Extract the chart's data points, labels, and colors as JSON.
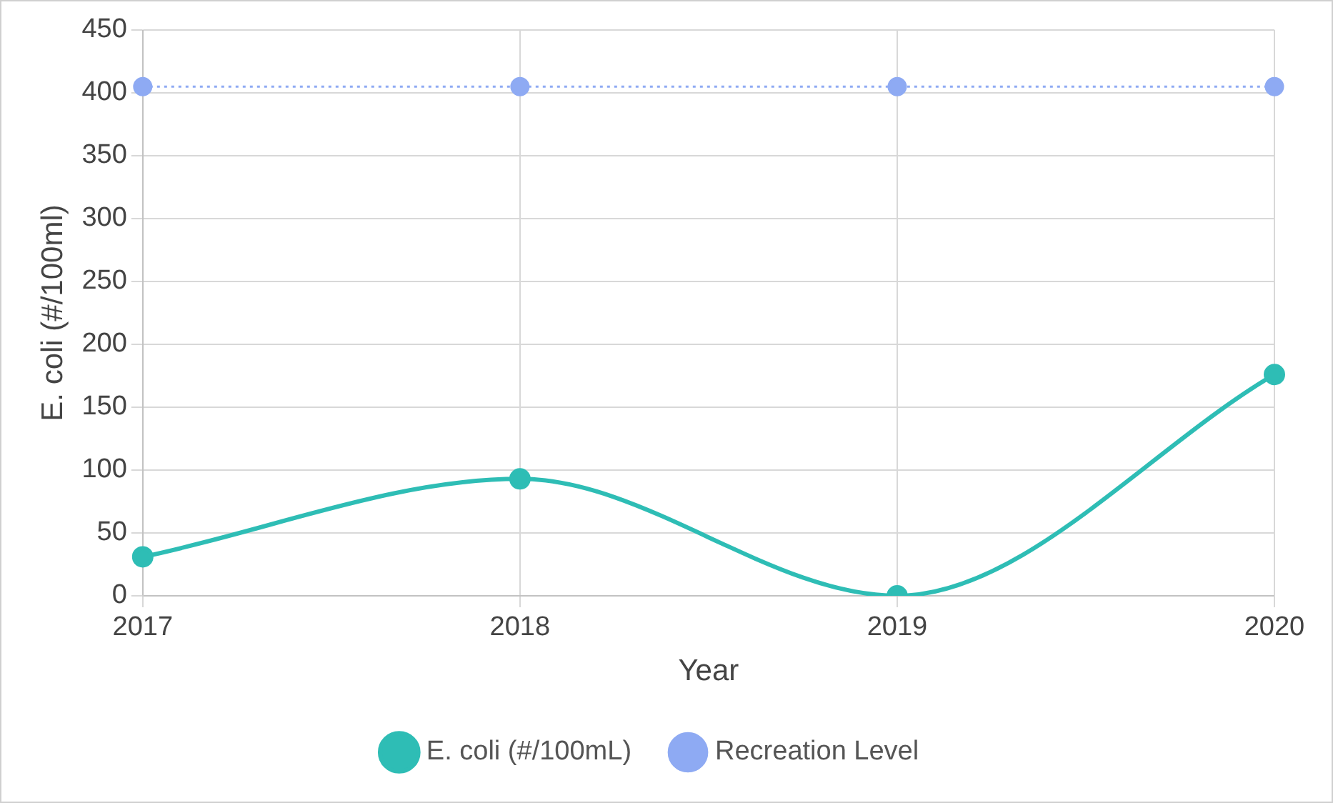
{
  "chart_data": {
    "type": "line",
    "xlabel": "Year",
    "ylabel": "E. coli (#/100ml)",
    "categories": [
      "2017",
      "2018",
      "2019",
      "2020"
    ],
    "series": [
      {
        "name": "E. coli (#/100mL)",
        "color": "#2ebdb5",
        "values": [
          31,
          93,
          0,
          176
        ],
        "line_style": "solid"
      },
      {
        "name": "Recreation Level",
        "color": "#8eaaf3",
        "values": [
          405,
          405,
          405,
          405
        ],
        "line_style": "dotted"
      }
    ],
    "ylim": [
      0,
      450
    ],
    "yticks": [
      0,
      50,
      100,
      150,
      200,
      250,
      300,
      350,
      400,
      450
    ],
    "grid": true,
    "legend": "bottom",
    "marker": "circle"
  }
}
